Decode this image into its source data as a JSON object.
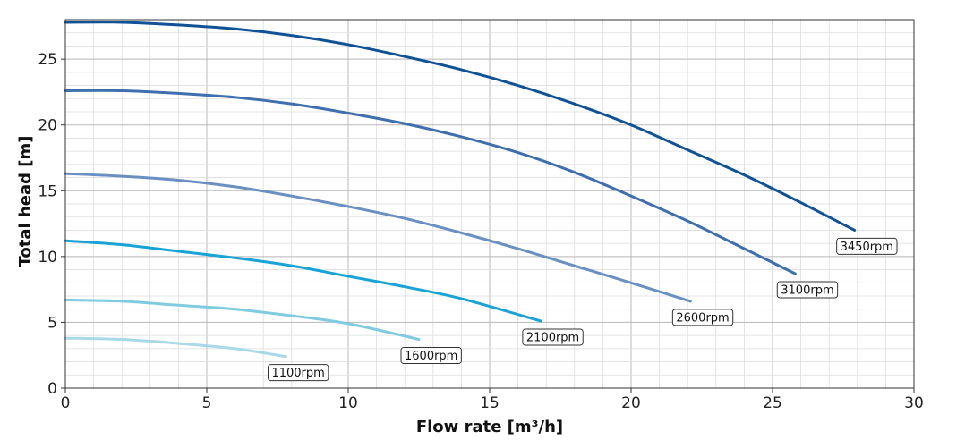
{
  "chart_data": {
    "type": "line",
    "title": "",
    "xlabel": "Flow rate [m³/h]",
    "ylabel": "Total head [m]",
    "xlim": [
      0,
      30
    ],
    "ylim": [
      0,
      28
    ],
    "x_ticks": [
      0,
      5,
      10,
      15,
      20,
      25,
      30
    ],
    "y_ticks": [
      0,
      5,
      10,
      15,
      20,
      25
    ],
    "x_minor_step": 1,
    "y_minor_step": 1,
    "grid": true,
    "legend": "none",
    "series": [
      {
        "name": "3450rpm",
        "color": "#0f5396",
        "x": [
          0,
          2,
          4,
          6,
          8,
          10,
          12,
          14,
          16,
          18,
          20,
          22,
          24,
          26,
          27.9
        ],
        "y": [
          27.8,
          27.8,
          27.6,
          27.3,
          26.8,
          26.1,
          25.2,
          24.2,
          23.0,
          21.6,
          20.0,
          18.1,
          16.2,
          14.1,
          12.0
        ]
      },
      {
        "name": "3100rpm",
        "color": "#3f6fad",
        "x": [
          0,
          2,
          4,
          6,
          8,
          10,
          12,
          14,
          16,
          18,
          20,
          22,
          24,
          25.8
        ],
        "y": [
          22.6,
          22.6,
          22.4,
          22.1,
          21.6,
          20.9,
          20.1,
          19.1,
          17.9,
          16.4,
          14.6,
          12.7,
          10.6,
          8.7
        ]
      },
      {
        "name": "2600rpm",
        "color": "#6a90c2",
        "x": [
          0,
          2,
          4,
          6,
          8,
          10,
          12,
          14,
          16,
          18,
          20,
          22.1
        ],
        "y": [
          16.3,
          16.1,
          15.8,
          15.3,
          14.6,
          13.8,
          12.9,
          11.8,
          10.6,
          9.3,
          8.0,
          6.6
        ]
      },
      {
        "name": "2100rpm",
        "color": "#19a3d6",
        "x": [
          0,
          2,
          4,
          6,
          8,
          10,
          12,
          14,
          16.8
        ],
        "y": [
          11.2,
          10.9,
          10.4,
          9.9,
          9.3,
          8.5,
          7.7,
          6.8,
          5.1
        ]
      },
      {
        "name": "1600rpm",
        "color": "#7fcbe0",
        "x": [
          0,
          2,
          4,
          6,
          8,
          10,
          12.5
        ],
        "y": [
          6.7,
          6.6,
          6.3,
          6.0,
          5.5,
          4.9,
          3.7
        ]
      },
      {
        "name": "1100rpm",
        "color": "#a9d9e7",
        "x": [
          0,
          2,
          4,
          6,
          7.8
        ],
        "y": [
          3.8,
          3.7,
          3.4,
          3.0,
          2.4
        ]
      }
    ]
  }
}
